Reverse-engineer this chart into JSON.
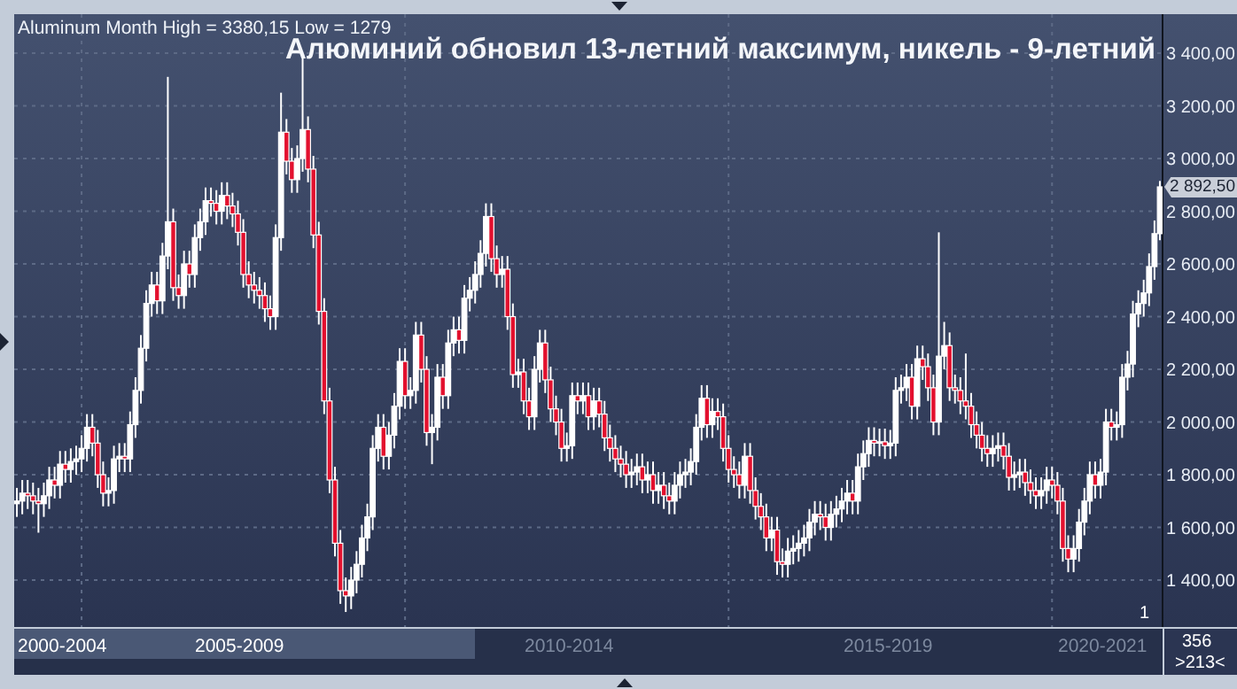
{
  "chart_data": {
    "type": "candlestick",
    "title": "Алюминий обновил 13-летний максимум, никель - 9-летний",
    "annotations": [
      "Aluminum Month High = 3380,15 Low = 1279",
      "2 892,50",
      "2000-2004",
      "2005-2009",
      "2010-2014",
      "2015-2019",
      "2020-2021",
      "356",
      ">213<",
      "1"
    ],
    "categories": [
      null,
      null,
      null,
      null,
      null,
      null,
      null,
      null,
      null,
      null,
      null,
      null,
      null,
      null,
      null,
      null,
      null,
      null,
      null,
      null,
      null,
      null,
      null,
      null,
      null,
      null,
      null,
      null,
      null,
      null,
      null,
      null,
      null,
      null,
      null,
      null,
      null,
      null,
      null,
      null,
      null,
      null,
      null,
      null,
      null,
      null,
      null,
      null,
      null,
      null,
      null,
      null,
      null,
      null,
      null,
      null,
      null,
      null,
      null,
      null,
      null,
      null,
      null,
      null,
      null,
      null,
      null,
      null,
      null,
      null,
      null,
      null,
      null,
      null,
      null,
      null,
      null,
      null,
      null,
      null,
      null,
      null,
      null,
      null,
      null,
      null,
      null,
      null,
      null,
      null,
      null,
      null,
      null,
      null,
      null,
      null,
      null,
      null,
      null,
      null,
      null,
      null,
      null,
      null,
      null,
      null,
      null,
      null,
      null,
      null,
      null,
      null,
      null,
      null,
      null,
      null,
      null,
      null,
      null,
      null,
      null,
      null,
      null,
      null,
      null,
      null,
      null,
      null,
      null,
      null,
      null,
      null,
      null,
      null,
      null,
      null,
      null,
      null,
      null,
      null,
      null,
      null,
      null,
      null,
      null,
      null,
      null,
      null,
      null,
      null,
      null,
      null,
      null,
      null,
      null,
      null,
      null,
      null,
      null,
      null,
      null,
      null,
      null,
      null,
      null,
      null,
      null,
      null,
      null,
      null,
      null,
      null,
      null,
      null,
      null,
      null,
      null,
      null,
      null,
      null,
      null,
      null,
      null,
      null,
      null,
      null,
      null,
      null,
      null,
      null,
      null,
      null,
      null,
      null,
      null,
      null,
      null,
      null,
      null,
      null,
      null,
      null,
      null,
      null,
      null,
      null,
      null,
      null,
      null,
      null,
      null,
      null,
      null
    ],
    "ohlc": [
      [
        1690,
        1750,
        1640,
        1700
      ],
      [
        1700,
        1780,
        1650,
        1730
      ],
      [
        1730,
        1780,
        1670,
        1720
      ],
      [
        1720,
        1770,
        1650,
        1700
      ],
      [
        1700,
        1750,
        1580,
        1690
      ],
      [
        1690,
        1770,
        1640,
        1720
      ],
      [
        1720,
        1830,
        1670,
        1780
      ],
      [
        1780,
        1830,
        1710,
        1760
      ],
      [
        1760,
        1890,
        1710,
        1840
      ],
      [
        1840,
        1890,
        1770,
        1820
      ],
      [
        1820,
        1900,
        1770,
        1850
      ],
      [
        1850,
        1910,
        1800,
        1860
      ],
      [
        1860,
        1950,
        1810,
        1900
      ],
      [
        1900,
        2030,
        1850,
        1980
      ],
      [
        1980,
        2030,
        1870,
        1920
      ],
      [
        1920,
        1970,
        1750,
        1800
      ],
      [
        1800,
        1850,
        1680,
        1730
      ],
      [
        1730,
        1790,
        1680,
        1740
      ],
      [
        1740,
        1910,
        1690,
        1860
      ],
      [
        1860,
        1920,
        1810,
        1870
      ],
      [
        1870,
        1920,
        1810,
        1860
      ],
      [
        1860,
        2040,
        1810,
        1990
      ],
      [
        1990,
        2170,
        1940,
        2120
      ],
      [
        2120,
        2330,
        2070,
        2280
      ],
      [
        2280,
        2500,
        2230,
        2450
      ],
      [
        2450,
        2570,
        2400,
        2520
      ],
      [
        2520,
        2570,
        2410,
        2460
      ],
      [
        2460,
        2680,
        2410,
        2630
      ],
      [
        2630,
        3310,
        2580,
        2760
      ],
      [
        2760,
        2810,
        2460,
        2510
      ],
      [
        2510,
        2560,
        2430,
        2480
      ],
      [
        2480,
        2650,
        2430,
        2600
      ],
      [
        2600,
        2650,
        2510,
        2560
      ],
      [
        2560,
        2750,
        2510,
        2700
      ],
      [
        2700,
        2810,
        2650,
        2760
      ],
      [
        2760,
        2890,
        2710,
        2840
      ],
      [
        2840,
        2890,
        2780,
        2830
      ],
      [
        2830,
        2880,
        2750,
        2800
      ],
      [
        2800,
        2910,
        2750,
        2860
      ],
      [
        2860,
        2910,
        2770,
        2820
      ],
      [
        2820,
        2870,
        2740,
        2790
      ],
      [
        2790,
        2840,
        2670,
        2720
      ],
      [
        2720,
        2770,
        2510,
        2560
      ],
      [
        2560,
        2610,
        2470,
        2520
      ],
      [
        2520,
        2570,
        2450,
        2500
      ],
      [
        2500,
        2550,
        2430,
        2480
      ],
      [
        2480,
        2530,
        2380,
        2430
      ],
      [
        2430,
        2480,
        2350,
        2400
      ],
      [
        2400,
        2750,
        2350,
        2700
      ],
      [
        2700,
        3250,
        2650,
        3100
      ],
      [
        3100,
        3150,
        2940,
        2990
      ],
      [
        2990,
        3040,
        2870,
        2920
      ],
      [
        2920,
        3050,
        2870,
        3000
      ],
      [
        3000,
        3380.15,
        2950,
        3110
      ],
      [
        3110,
        3160,
        2910,
        2960
      ],
      [
        2960,
        3010,
        2660,
        2710
      ],
      [
        2710,
        2760,
        2370,
        2420
      ],
      [
        2420,
        2470,
        2030,
        2080
      ],
      [
        2080,
        2130,
        1730,
        1780
      ],
      [
        1780,
        1830,
        1490,
        1540
      ],
      [
        1540,
        1590,
        1310,
        1360
      ],
      [
        1360,
        1410,
        1279,
        1340
      ],
      [
        1340,
        1450,
        1290,
        1400
      ],
      [
        1400,
        1510,
        1350,
        1460
      ],
      [
        1460,
        1610,
        1410,
        1560
      ],
      [
        1560,
        1690,
        1510,
        1640
      ],
      [
        1640,
        1950,
        1590,
        1900
      ],
      [
        1900,
        2030,
        1850,
        1980
      ],
      [
        1980,
        2030,
        1820,
        1870
      ],
      [
        1870,
        2000,
        1820,
        1950
      ],
      [
        1950,
        2110,
        1900,
        2060
      ],
      [
        2060,
        2280,
        2010,
        2230
      ],
      [
        2230,
        2280,
        2050,
        2100
      ],
      [
        2100,
        2170,
        2050,
        2120
      ],
      [
        2120,
        2380,
        2070,
        2330
      ],
      [
        2330,
        2380,
        2150,
        2200
      ],
      [
        2200,
        2250,
        1910,
        1960
      ],
      [
        1960,
        2030,
        1840,
        1980
      ],
      [
        1980,
        2220,
        1930,
        2170
      ],
      [
        2170,
        2220,
        2050,
        2100
      ],
      [
        2100,
        2350,
        2050,
        2300
      ],
      [
        2300,
        2400,
        2250,
        2350
      ],
      [
        2350,
        2400,
        2260,
        2310
      ],
      [
        2310,
        2520,
        2260,
        2470
      ],
      [
        2470,
        2550,
        2420,
        2500
      ],
      [
        2500,
        2610,
        2450,
        2560
      ],
      [
        2560,
        2690,
        2510,
        2640
      ],
      [
        2640,
        2830,
        2590,
        2780
      ],
      [
        2780,
        2830,
        2570,
        2620
      ],
      [
        2620,
        2670,
        2510,
        2560
      ],
      [
        2560,
        2630,
        2510,
        2580
      ],
      [
        2580,
        2630,
        2350,
        2400
      ],
      [
        2400,
        2450,
        2130,
        2180
      ],
      [
        2180,
        2240,
        2130,
        2190
      ],
      [
        2190,
        2240,
        2030,
        2080
      ],
      [
        2080,
        2130,
        1970,
        2020
      ],
      [
        2020,
        2250,
        1970,
        2200
      ],
      [
        2200,
        2350,
        2150,
        2300
      ],
      [
        2300,
        2350,
        2110,
        2160
      ],
      [
        2160,
        2210,
        2000,
        2050
      ],
      [
        2050,
        2100,
        1950,
        2000
      ],
      [
        2000,
        2050,
        1850,
        1900
      ],
      [
        1900,
        1960,
        1850,
        1910
      ],
      [
        1910,
        2150,
        1860,
        2100
      ],
      [
        2100,
        2150,
        2030,
        2080
      ],
      [
        2080,
        2150,
        2030,
        2100
      ],
      [
        2100,
        2150,
        1970,
        2020
      ],
      [
        2020,
        2130,
        1970,
        2080
      ],
      [
        2080,
        2130,
        1980,
        2030
      ],
      [
        2030,
        2080,
        1890,
        1940
      ],
      [
        1940,
        1990,
        1850,
        1900
      ],
      [
        1900,
        1950,
        1810,
        1860
      ],
      [
        1860,
        1910,
        1790,
        1840
      ],
      [
        1840,
        1890,
        1750,
        1800
      ],
      [
        1800,
        1860,
        1750,
        1810
      ],
      [
        1810,
        1880,
        1760,
        1830
      ],
      [
        1830,
        1880,
        1730,
        1780
      ],
      [
        1780,
        1850,
        1730,
        1800
      ],
      [
        1800,
        1850,
        1690,
        1740
      ],
      [
        1740,
        1810,
        1690,
        1760
      ],
      [
        1760,
        1810,
        1670,
        1720
      ],
      [
        1720,
        1770,
        1650,
        1700
      ],
      [
        1700,
        1810,
        1650,
        1760
      ],
      [
        1760,
        1850,
        1710,
        1800
      ],
      [
        1800,
        1860,
        1750,
        1810
      ],
      [
        1810,
        1900,
        1760,
        1850
      ],
      [
        1850,
        2030,
        1800,
        1980
      ],
      [
        1980,
        2140,
        1930,
        2090
      ],
      [
        2090,
        2140,
        1940,
        1990
      ],
      [
        1990,
        2090,
        1940,
        2040
      ],
      [
        2040,
        2090,
        1970,
        2020
      ],
      [
        2020,
        2070,
        1850,
        1900
      ],
      [
        1900,
        1950,
        1770,
        1820
      ],
      [
        1820,
        1870,
        1750,
        1800
      ],
      [
        1800,
        1850,
        1710,
        1760
      ],
      [
        1760,
        1920,
        1710,
        1870
      ],
      [
        1870,
        1920,
        1690,
        1740
      ],
      [
        1740,
        1790,
        1630,
        1680
      ],
      [
        1680,
        1730,
        1590,
        1640
      ],
      [
        1640,
        1690,
        1510,
        1560
      ],
      [
        1560,
        1640,
        1510,
        1590
      ],
      [
        1590,
        1640,
        1420,
        1470
      ],
      [
        1470,
        1520,
        1410,
        1460
      ],
      [
        1460,
        1560,
        1410,
        1510
      ],
      [
        1510,
        1570,
        1460,
        1520
      ],
      [
        1520,
        1590,
        1470,
        1540
      ],
      [
        1540,
        1610,
        1490,
        1560
      ],
      [
        1560,
        1670,
        1510,
        1620
      ],
      [
        1620,
        1700,
        1570,
        1650
      ],
      [
        1650,
        1700,
        1590,
        1640
      ],
      [
        1640,
        1690,
        1550,
        1600
      ],
      [
        1600,
        1700,
        1550,
        1650
      ],
      [
        1650,
        1720,
        1600,
        1670
      ],
      [
        1670,
        1750,
        1620,
        1700
      ],
      [
        1700,
        1780,
        1650,
        1730
      ],
      [
        1730,
        1780,
        1650,
        1700
      ],
      [
        1700,
        1880,
        1650,
        1830
      ],
      [
        1830,
        1930,
        1780,
        1880
      ],
      [
        1880,
        1980,
        1830,
        1930
      ],
      [
        1930,
        1980,
        1870,
        1920
      ],
      [
        1920,
        1975,
        1870,
        1925
      ],
      [
        1925,
        1975,
        1860,
        1910
      ],
      [
        1910,
        1970,
        1860,
        1920
      ],
      [
        1920,
        2170,
        1870,
        2120
      ],
      [
        2120,
        2180,
        2070,
        2130
      ],
      [
        2130,
        2220,
        2080,
        2170
      ],
      [
        2170,
        2220,
        2010,
        2060
      ],
      [
        2060,
        2290,
        2010,
        2240
      ],
      [
        2240,
        2290,
        2160,
        2210
      ],
      [
        2210,
        2260,
        2080,
        2130
      ],
      [
        2130,
        2180,
        1950,
        2000
      ],
      [
        2000,
        2720,
        1950,
        2250
      ],
      [
        2250,
        2380,
        2200,
        2290
      ],
      [
        2290,
        2340,
        2080,
        2130
      ],
      [
        2130,
        2180,
        2070,
        2120
      ],
      [
        2120,
        2170,
        2030,
        2080
      ],
      [
        2080,
        2260,
        2010,
        2060
      ],
      [
        2060,
        2110,
        1940,
        1990
      ],
      [
        1990,
        2040,
        1900,
        1950
      ],
      [
        1950,
        2000,
        1850,
        1900
      ],
      [
        1900,
        1950,
        1830,
        1880
      ],
      [
        1880,
        1950,
        1830,
        1900
      ],
      [
        1900,
        1960,
        1850,
        1910
      ],
      [
        1910,
        1960,
        1820,
        1870
      ],
      [
        1870,
        1920,
        1740,
        1790
      ],
      [
        1790,
        1850,
        1740,
        1800
      ],
      [
        1800,
        1860,
        1750,
        1810
      ],
      [
        1810,
        1860,
        1720,
        1770
      ],
      [
        1770,
        1820,
        1690,
        1740
      ],
      [
        1740,
        1790,
        1670,
        1720
      ],
      [
        1720,
        1790,
        1670,
        1740
      ],
      [
        1740,
        1830,
        1690,
        1780
      ],
      [
        1780,
        1830,
        1710,
        1760
      ],
      [
        1760,
        1810,
        1650,
        1700
      ],
      [
        1700,
        1750,
        1470,
        1520
      ],
      [
        1520,
        1570,
        1430,
        1480
      ],
      [
        1480,
        1570,
        1430,
        1520
      ],
      [
        1520,
        1670,
        1470,
        1620
      ],
      [
        1620,
        1750,
        1570,
        1700
      ],
      [
        1700,
        1850,
        1650,
        1800
      ],
      [
        1800,
        1850,
        1710,
        1760
      ],
      [
        1760,
        1860,
        1710,
        1810
      ],
      [
        1810,
        2050,
        1760,
        2000
      ],
      [
        2000,
        2050,
        1930,
        1980
      ],
      [
        1980,
        2040,
        1930,
        1990
      ],
      [
        1990,
        2220,
        1940,
        2170
      ],
      [
        2170,
        2270,
        2120,
        2220
      ],
      [
        2220,
        2460,
        2170,
        2410
      ],
      [
        2410,
        2500,
        2360,
        2450
      ],
      [
        2450,
        2540,
        2400,
        2490
      ],
      [
        2490,
        2640,
        2440,
        2590
      ],
      [
        2590,
        2765,
        2540,
        2715
      ],
      [
        2715,
        2915,
        2690,
        2892.5
      ]
    ],
    "ylim": [
      1222,
      3548
    ],
    "yticks": [
      {
        "value": 1400,
        "label": "1 400,00"
      },
      {
        "value": 1600,
        "label": "1 600,00"
      },
      {
        "value": 1800,
        "label": "1 800,00"
      },
      {
        "value": 2000,
        "label": "2 000,00"
      },
      {
        "value": 2200,
        "label": "2 200,00"
      },
      {
        "value": 2400,
        "label": "2 400,00"
      },
      {
        "value": 2600,
        "label": "2 600,00"
      },
      {
        "value": 2800,
        "label": "2 800,00"
      },
      {
        "value": 3000,
        "label": "3 000,00"
      },
      {
        "value": 3200,
        "label": "3 200,00"
      },
      {
        "value": 3400,
        "label": "3 400,00"
      }
    ],
    "tick_labels": "y",
    "grid": true
  }
}
